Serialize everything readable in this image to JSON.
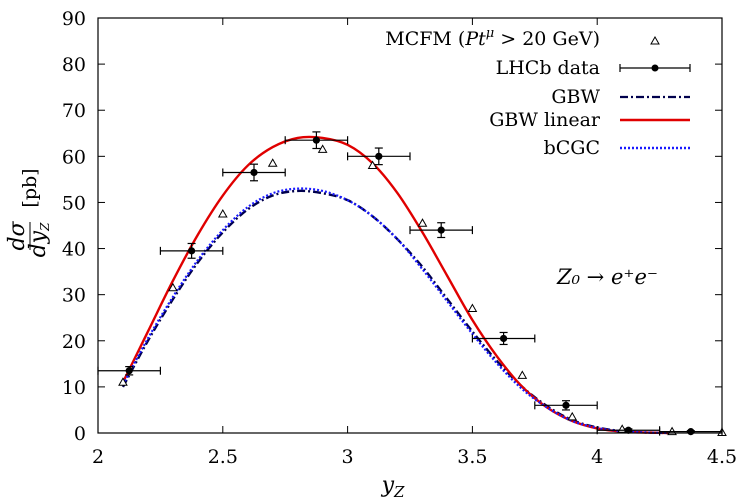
{
  "chart_data": {
    "type": "line",
    "xlabel": "y_Z",
    "ylabel": "dσ/dy_Z [pb]",
    "xlim": [
      2,
      4.5
    ],
    "ylim": [
      0,
      90
    ],
    "x_ticks": [
      "2",
      "2.5",
      "3",
      "3.5",
      "4",
      "4.5"
    ],
    "y_ticks": [
      "0",
      "10",
      "20",
      "30",
      "40",
      "50",
      "60",
      "70",
      "80",
      "90"
    ],
    "ylabel_parts": {
      "num": "dσ",
      "den": "dy",
      "den_sub": "Z",
      "unit": "[pb]"
    },
    "xlabel_parts": {
      "main": "y",
      "sub": "Z"
    },
    "annotation": "Z₀ → e⁺e⁻",
    "legend_position": "top-right",
    "grid": false,
    "series": [
      {
        "name": "MCFM (Ptμ > 20 GeV)",
        "style": "triangle-markers",
        "color": "#000000",
        "x": [
          2.1,
          2.3,
          2.5,
          2.7,
          2.9,
          3.1,
          3.3,
          3.5,
          3.7,
          3.9,
          4.1,
          4.3,
          4.5
        ],
        "y": [
          11,
          31.5,
          47.5,
          58.5,
          61.5,
          58,
          45.5,
          27,
          12.5,
          3.5,
          0.8,
          0.3,
          0.1
        ]
      },
      {
        "name": "LHCb data",
        "style": "points-errorbars",
        "color": "#000000",
        "x": [
          2.125,
          2.375,
          2.625,
          2.875,
          3.125,
          3.375,
          3.625,
          3.875,
          4.125,
          4.375
        ],
        "y": [
          13.5,
          39.5,
          56.5,
          63.5,
          60,
          44,
          20.5,
          6,
          0.6,
          0.3
        ],
        "xerr": [
          0.125,
          0.125,
          0.125,
          0.125,
          0.125,
          0.125,
          0.125,
          0.125,
          0.125,
          0.125
        ],
        "yerr": [
          0.9,
          1.6,
          1.8,
          1.8,
          1.8,
          1.6,
          1.3,
          1.0,
          0.3,
          0.2
        ]
      },
      {
        "name": "GBW",
        "style": "dash-dot",
        "color": "#00004d",
        "x": [
          2.1,
          2.2,
          2.3,
          2.4,
          2.5,
          2.6,
          2.7,
          2.8,
          2.9,
          3.0,
          3.1,
          3.2,
          3.3,
          3.4,
          3.5,
          3.6,
          3.7,
          3.8,
          3.9,
          4.0,
          4.1,
          4.2,
          4.3
        ],
        "y": [
          10,
          20,
          29,
          37,
          43.5,
          48.5,
          51.5,
          52.5,
          52,
          50.5,
          47,
          42,
          36,
          29,
          22,
          15.5,
          10,
          5.8,
          2.8,
          1.2,
          0.4,
          0.1,
          0
        ]
      },
      {
        "name": "GBW linear",
        "style": "solid",
        "color": "#e00000",
        "x": [
          2.1,
          2.2,
          2.3,
          2.4,
          2.5,
          2.6,
          2.7,
          2.8,
          2.9,
          3.0,
          3.1,
          3.2,
          3.3,
          3.4,
          3.5,
          3.6,
          3.7,
          3.8,
          3.9,
          4.0,
          4.1,
          4.2,
          4.3
        ],
        "y": [
          11,
          22,
          33,
          43,
          51.5,
          58,
          62,
          64,
          64,
          62.5,
          58.5,
          52,
          43.5,
          34,
          24.5,
          16.5,
          10,
          5.5,
          2.6,
          1,
          0.3,
          0.1,
          0
        ]
      },
      {
        "name": "bCGC",
        "style": "dotted",
        "color": "#1a1aff",
        "x": [
          2.1,
          2.2,
          2.3,
          2.4,
          2.5,
          2.6,
          2.7,
          2.8,
          2.9,
          3.0,
          3.1,
          3.2,
          3.3,
          3.4,
          3.5,
          3.6,
          3.7,
          3.8,
          3.9,
          4.0,
          4.1,
          4.2,
          4.3
        ],
        "y": [
          10.5,
          20.5,
          29.5,
          37.5,
          44,
          49,
          52,
          53,
          52.5,
          50.5,
          47,
          42,
          35.5,
          28.5,
          21.5,
          15,
          9.5,
          5.5,
          2.6,
          1.1,
          0.4,
          0.1,
          0
        ]
      }
    ],
    "legend_labels": {
      "mcfm_prefix": "MCFM (",
      "mcfm_pt": "Pt",
      "mcfm_mu": "μ",
      "mcfm_suffix": " > 20 GeV)",
      "lhcb": "LHCb data",
      "gbw": "GBW",
      "gbw_linear": "GBW linear",
      "bcgc": "bCGC"
    }
  }
}
